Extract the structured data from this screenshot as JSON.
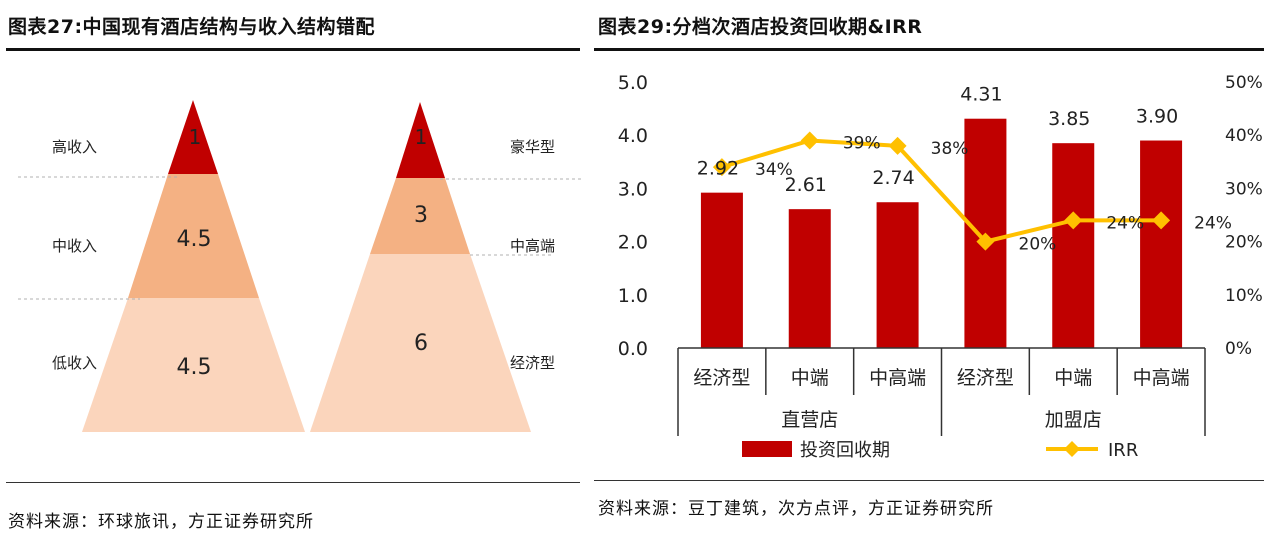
{
  "left_panel": {
    "title": "图表27:中国现有酒店结构与收入结构错配",
    "source": "资料来源：环球旅讯，方正证券研究所",
    "income_labels": [
      "高收入",
      "中收入",
      "低收入"
    ],
    "income_values": [
      "1",
      "4.5",
      "4.5"
    ],
    "hotel_labels": [
      "豪华型",
      "中高端",
      "经济型"
    ],
    "hotel_values": [
      "1",
      "3",
      "6"
    ]
  },
  "right_panel": {
    "title": "图表29:分档次酒店投资回收期&IRR",
    "source": "资料来源：豆丁建筑，次方点评，方正证券研究所"
  },
  "colors": {
    "dark_red": "#c00000",
    "mid": "#f4b183",
    "light": "#fbd5bc",
    "gold": "#ffc000"
  },
  "chart_data": [
    {
      "type": "pyramid",
      "series": [
        {
          "name": "",
          "categories": [
            "高收入",
            "中收入",
            "低收入"
          ],
          "values": [
            1,
            4.5,
            4.5
          ]
        },
        {
          "name": "",
          "categories": [
            "豪华型",
            "中高端",
            "经济型"
          ],
          "values": [
            1,
            3,
            6
          ]
        }
      ]
    },
    {
      "type": "bar",
      "categories": [
        "经济型",
        "中端",
        "中高端",
        "经济型",
        "中端",
        "中高端"
      ],
      "groups": [
        "直营店",
        "加盟店"
      ],
      "series": [
        {
          "name": "投资回收期",
          "type": "bar",
          "axis": "left",
          "values": [
            2.92,
            2.61,
            2.74,
            4.31,
            3.85,
            3.9
          ],
          "labels": [
            "2.92",
            "2.61",
            "2.74",
            "4.31",
            "3.85",
            "3.90"
          ]
        },
        {
          "name": "IRR",
          "type": "line",
          "axis": "right",
          "values": [
            34,
            39,
            38,
            20,
            24,
            24
          ],
          "labels": [
            "34%",
            "39%",
            "38%",
            "20%",
            "24%",
            "24%"
          ]
        }
      ],
      "yleft": {
        "ticks": [
          "0.0",
          "1.0",
          "2.0",
          "3.0",
          "4.0",
          "5.0"
        ],
        "lim": [
          0,
          5
        ]
      },
      "yright": {
        "ticks": [
          "0%",
          "10%",
          "20%",
          "30%",
          "40%",
          "50%"
        ],
        "lim": [
          0,
          50
        ]
      },
      "legend": "bottom"
    }
  ]
}
